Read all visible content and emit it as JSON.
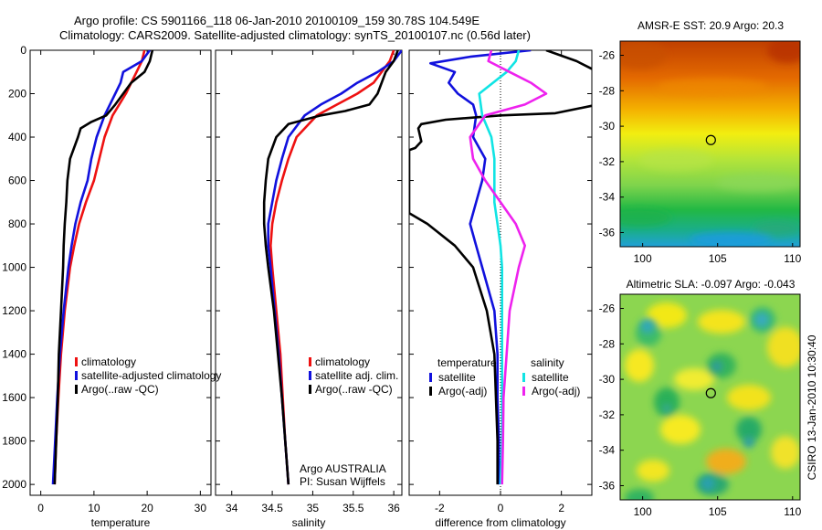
{
  "title": {
    "line1": "Argo profile: CS 5901166_118 06-Jan-2010 20100109_159 30.78S 104.549E",
    "line2": "Climatology: CARS2009. Satellite-adjusted climatology: synTS_20100107.nc (0.56d later)"
  },
  "colors": {
    "red": "#ee1111",
    "blue": "#1111dd",
    "black": "#000000",
    "cyan": "#11e4e4",
    "magenta": "#ee22ee"
  },
  "credit": "CSIRO 13-Jan-2010 10:30:40",
  "chart_data": [
    {
      "id": "temperature",
      "type": "line",
      "xlabel": "temperature",
      "ylabel": "",
      "xlim": [
        -2,
        32
      ],
      "ylim": [
        2050,
        0
      ],
      "xticks": [
        0,
        10,
        20,
        30
      ],
      "xtick_labels": [
        "0",
        "10",
        "20",
        "30"
      ],
      "yticks": [
        0,
        200,
        400,
        600,
        800,
        1000,
        1200,
        1400,
        1600,
        1800,
        2000
      ],
      "ytick_labels": [
        "0",
        "200",
        "400",
        "600",
        "800",
        "1000",
        "1200",
        "1400",
        "1600",
        "1800",
        "2000"
      ],
      "legend": [
        "climatology",
        "satellite-adjusted climatology",
        "Argo(..raw -QC)"
      ],
      "series": [
        {
          "name": "climatology",
          "color": "red",
          "y": [
            0,
            50,
            100,
            200,
            300,
            400,
            500,
            600,
            700,
            800,
            900,
            1000,
            1200,
            1400,
            1600,
            1800,
            2000
          ],
          "x": [
            19.5,
            19,
            18,
            16,
            13.5,
            12,
            11,
            10,
            8.5,
            7.2,
            6.3,
            5.5,
            4.5,
            3.8,
            3.3,
            2.9,
            2.6
          ]
        },
        {
          "name": "satellite-adjusted climatology",
          "color": "blue",
          "y": [
            0,
            50,
            100,
            150,
            200,
            300,
            400,
            500,
            600,
            700,
            800,
            900,
            1000,
            1200,
            1400,
            1600,
            1800,
            2000
          ],
          "x": [
            20.5,
            19,
            15.5,
            15,
            14,
            12,
            10.5,
            9.5,
            8.8,
            7.5,
            6.5,
            5.8,
            5.2,
            4.3,
            3.6,
            3.1,
            2.7,
            2.3
          ]
        },
        {
          "name": "Argo(..raw -QC)",
          "color": "black",
          "y": [
            0,
            50,
            100,
            150,
            200,
            250,
            300,
            330,
            360,
            400,
            500,
            600,
            700,
            800,
            900,
            1000,
            1200,
            1400,
            1600,
            1800,
            2000
          ],
          "x": [
            21,
            20.5,
            19.5,
            17,
            15.5,
            14,
            12.3,
            9.5,
            7.5,
            7,
            5.5,
            5,
            4.8,
            4.5,
            4.3,
            4.2,
            3.8,
            3.4,
            3.2,
            2.9,
            2.6
          ]
        }
      ]
    },
    {
      "id": "salinity",
      "type": "line",
      "xlabel": "salinity",
      "ylabel": "",
      "xlim": [
        33.8,
        36.1
      ],
      "ylim": [
        2050,
        0
      ],
      "xticks": [
        34,
        34.5,
        35,
        35.5,
        36
      ],
      "xtick_labels": [
        "34",
        "34.5",
        "35",
        "35.5",
        "36"
      ],
      "yticks": [
        0,
        200,
        400,
        600,
        800,
        1000,
        1200,
        1400,
        1600,
        1800,
        2000
      ],
      "legend": [
        "climatology",
        "satellite adj. clim.",
        "Argo(..raw -QC)"
      ],
      "annotation": [
        "Argo AUSTRALIA",
        "PI: Susan Wijffels"
      ],
      "series": [
        {
          "name": "climatology",
          "color": "red",
          "y": [
            0,
            50,
            100,
            150,
            200,
            250,
            300,
            400,
            500,
            600,
            700,
            800,
            900,
            1000,
            1200,
            1400,
            1600,
            1800,
            2000
          ],
          "x": [
            36.0,
            35.95,
            35.85,
            35.75,
            35.55,
            35.3,
            35.05,
            34.8,
            34.7,
            34.62,
            34.55,
            34.5,
            34.48,
            34.5,
            34.55,
            34.6,
            34.63,
            34.66,
            34.7
          ]
        },
        {
          "name": "satellite adj. clim.",
          "color": "blue",
          "y": [
            0,
            50,
            100,
            150,
            200,
            250,
            300,
            400,
            500,
            600,
            700,
            800,
            900,
            1000,
            1200,
            1400,
            1600,
            1800,
            2000
          ],
          "x": [
            36.1,
            36.0,
            35.8,
            35.55,
            35.35,
            35.1,
            34.9,
            34.7,
            34.62,
            34.55,
            34.5,
            34.45,
            34.45,
            34.48,
            34.53,
            34.58,
            34.62,
            34.66,
            34.7
          ]
        },
        {
          "name": "Argo(..raw -QC)",
          "color": "black",
          "y": [
            0,
            50,
            100,
            200,
            250,
            280,
            300,
            340,
            400,
            500,
            600,
            700,
            800,
            900,
            1000,
            1200,
            1400,
            1600,
            1800,
            2000
          ],
          "x": [
            36.05,
            36.0,
            35.9,
            35.8,
            35.7,
            35.4,
            35.1,
            34.7,
            34.55,
            34.45,
            34.42,
            34.4,
            34.4,
            34.42,
            34.45,
            34.52,
            34.57,
            34.62,
            34.66,
            34.7
          ]
        }
      ]
    },
    {
      "id": "difference",
      "type": "line",
      "xlabel": "difference from climatology",
      "ylabel": "",
      "xlim": [
        -3,
        3
      ],
      "ylim": [
        2050,
        0
      ],
      "xticks": [
        -2,
        0,
        2
      ],
      "xtick_labels": [
        "-2",
        "0",
        "2"
      ],
      "yticks": [
        0,
        200,
        400,
        600,
        800,
        1000,
        1200,
        1400,
        1600,
        1800,
        2000
      ],
      "legend_headers": [
        "temperature",
        "salinity"
      ],
      "legend": [
        "satellite",
        "Argo(-adj)",
        "satellite",
        "Argo(-adj)"
      ],
      "series": [
        {
          "name": "temperature satellite",
          "color": "blue",
          "y": [
            0,
            30,
            60,
            100,
            150,
            200,
            250,
            300,
            400,
            500,
            600,
            700,
            800,
            900,
            1000,
            1200,
            1400,
            1600,
            1800,
            2000
          ],
          "x": [
            1.0,
            -1.0,
            -2.3,
            -1.5,
            -1.7,
            -1.4,
            -0.9,
            -0.8,
            -0.9,
            -0.5,
            -0.6,
            -0.8,
            -1.0,
            -0.8,
            -0.6,
            -0.2,
            -0.1,
            -0.1,
            -0.05,
            -0.05
          ]
        },
        {
          "name": "temperature Argo(-adj)",
          "color": "black",
          "y": [
            0,
            50,
            100,
            200,
            250,
            290,
            300,
            320,
            340,
            360,
            420,
            450,
            460,
            540,
            550,
            750,
            800,
            900,
            1000,
            1200,
            1400,
            1600,
            1800,
            2000
          ],
          "x": [
            1.5,
            2.5,
            3.2,
            3.2,
            3.2,
            1.8,
            0.0,
            -1.8,
            -2.6,
            -2.7,
            -2.6,
            -2.8,
            -3.0,
            -3.0,
            -3.0,
            -3.0,
            -2.4,
            -1.5,
            -0.9,
            -0.45,
            -0.2,
            -0.15,
            -0.1,
            -0.1
          ]
        },
        {
          "name": "salinity satellite",
          "color": "cyan",
          "y": [
            0,
            50,
            100,
            200,
            300,
            400,
            500,
            600,
            700,
            800,
            900,
            1000,
            1200,
            1400,
            1600,
            1800,
            2000
          ],
          "x": [
            0.6,
            0.5,
            0.2,
            -0.7,
            -0.6,
            -0.3,
            -0.2,
            -0.2,
            -0.2,
            -0.1,
            0.0,
            0.05,
            0.05,
            0.05,
            0.05,
            0.05,
            0.0
          ]
        },
        {
          "name": "salinity Argo(-adj)",
          "color": "magenta",
          "y": [
            0,
            50,
            100,
            150,
            200,
            250,
            300,
            400,
            500,
            600,
            700,
            800,
            900,
            1000,
            1200,
            1400,
            1600,
            1800,
            2000
          ],
          "x": [
            -0.3,
            -0.4,
            0.3,
            1.0,
            1.5,
            0.8,
            -0.5,
            -1.0,
            -0.9,
            -0.5,
            0.0,
            0.5,
            0.8,
            0.6,
            0.3,
            0.2,
            0.1,
            0.08,
            0.05
          ]
        }
      ]
    },
    {
      "id": "sst_map",
      "type": "heatmap",
      "title": "AMSR-E SST: 20.9 Argo: 20.3",
      "xlim": [
        98.5,
        110.5
      ],
      "ylim": [
        -36.8,
        -25.2
      ],
      "xticks": [
        100,
        105,
        110
      ],
      "xtick_labels": [
        "100",
        "105",
        "110"
      ],
      "yticks": [
        -26,
        -28,
        -30,
        -32,
        -34,
        -36
      ],
      "ytick_labels": [
        "-26",
        "-28",
        "-30",
        "-32",
        "-34",
        "-36"
      ],
      "marker": {
        "lon": 104.549,
        "lat": -30.78
      }
    },
    {
      "id": "sla_map",
      "type": "heatmap",
      "title": "Altimetric SLA: -0.097 Argo: -0.043",
      "xlim": [
        98.5,
        110.5
      ],
      "ylim": [
        -36.8,
        -25.2
      ],
      "xticks": [
        100,
        105,
        110
      ],
      "xtick_labels": [
        "100",
        "105",
        "110"
      ],
      "yticks": [
        -26,
        -28,
        -30,
        -32,
        -34,
        -36
      ],
      "ytick_labels": [
        "-26",
        "-28",
        "-30",
        "-32",
        "-34",
        "-36"
      ],
      "marker": {
        "lon": 104.549,
        "lat": -30.78
      }
    }
  ]
}
